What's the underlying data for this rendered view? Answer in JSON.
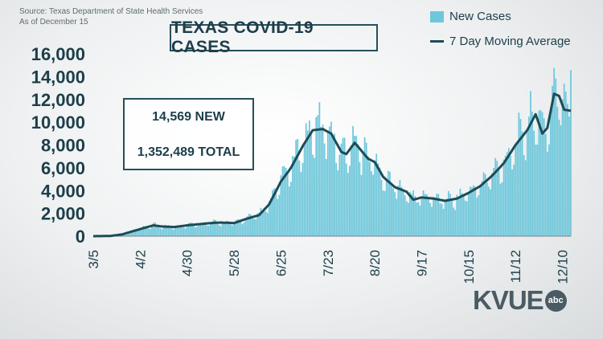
{
  "source_line1": "Source: Texas Department of State Health Services",
  "source_line2": "As of December 15",
  "stats": {
    "new": "14,569 NEW",
    "total": "1,352,489 TOTAL"
  },
  "logo": {
    "text": "KVUE",
    "badge": "abc"
  },
  "colors": {
    "bars": "#6ec7db",
    "line": "#1e4b57",
    "text": "#1d3e4a",
    "box_border": "#264f5c"
  },
  "chart_data": {
    "type": "bar",
    "title": "TEXAS COVID-19 CASES",
    "xlabel": "",
    "ylabel": "",
    "ylim": [
      0,
      16000
    ],
    "yticks": [
      0,
      2000,
      4000,
      6000,
      8000,
      10000,
      12000,
      14000,
      16000
    ],
    "ytick_labels": [
      "0",
      "2,000",
      "4,000",
      "6,000",
      "8,000",
      "10,000",
      "12,000",
      "14,000",
      "16,000"
    ],
    "x_start": "2020-03-05",
    "x_end": "2020-12-15",
    "xticks": [
      "2020-03-05",
      "2020-04-02",
      "2020-04-30",
      "2020-05-28",
      "2020-06-25",
      "2020-07-23",
      "2020-08-20",
      "2020-09-17",
      "2020-10-15",
      "2020-11-12",
      "2020-12-10"
    ],
    "xtick_labels": [
      "3/5",
      "4/2",
      "4/30",
      "5/28",
      "6/25",
      "7/23",
      "8/20",
      "9/17",
      "10/15",
      "11/12",
      "12/10"
    ],
    "legend": {
      "position": "top-right",
      "entries": [
        "New Cases",
        "7 Day Moving Average"
      ]
    },
    "series": [
      {
        "name": "7 Day Moving Average",
        "kind": "line",
        "points": [
          [
            "2020-03-05",
            0
          ],
          [
            "2020-03-15",
            20
          ],
          [
            "2020-03-22",
            150
          ],
          [
            "2020-03-29",
            450
          ],
          [
            "2020-04-05",
            750
          ],
          [
            "2020-04-10",
            950
          ],
          [
            "2020-04-15",
            850
          ],
          [
            "2020-04-22",
            800
          ],
          [
            "2020-04-30",
            950
          ],
          [
            "2020-05-07",
            1050
          ],
          [
            "2020-05-14",
            1150
          ],
          [
            "2020-05-20",
            1200
          ],
          [
            "2020-05-28",
            1150
          ],
          [
            "2020-06-05",
            1550
          ],
          [
            "2020-06-12",
            1850
          ],
          [
            "2020-06-18",
            2800
          ],
          [
            "2020-06-25",
            4800
          ],
          [
            "2020-07-01",
            6000
          ],
          [
            "2020-07-08",
            7900
          ],
          [
            "2020-07-14",
            9300
          ],
          [
            "2020-07-20",
            9400
          ],
          [
            "2020-07-25",
            9000
          ],
          [
            "2020-07-31",
            7400
          ],
          [
            "2020-08-03",
            7200
          ],
          [
            "2020-08-08",
            8200
          ],
          [
            "2020-08-12",
            7500
          ],
          [
            "2020-08-16",
            6800
          ],
          [
            "2020-08-20",
            6500
          ],
          [
            "2020-08-25",
            5200
          ],
          [
            "2020-09-01",
            4300
          ],
          [
            "2020-09-08",
            3900
          ],
          [
            "2020-09-12",
            3200
          ],
          [
            "2020-09-17",
            3400
          ],
          [
            "2020-09-24",
            3300
          ],
          [
            "2020-10-01",
            3100
          ],
          [
            "2020-10-08",
            3300
          ],
          [
            "2020-10-15",
            3800
          ],
          [
            "2020-10-22",
            4400
          ],
          [
            "2020-10-29",
            5300
          ],
          [
            "2020-11-05",
            6400
          ],
          [
            "2020-11-12",
            8000
          ],
          [
            "2020-11-19",
            9300
          ],
          [
            "2020-11-24",
            10700
          ],
          [
            "2020-11-28",
            9000
          ],
          [
            "2020-12-01",
            9500
          ],
          [
            "2020-12-05",
            12500
          ],
          [
            "2020-12-08",
            12300
          ],
          [
            "2020-12-11",
            11100
          ],
          [
            "2020-12-15",
            11000
          ]
        ]
      },
      {
        "name": "New Cases",
        "kind": "bar",
        "note": "daily bars approximated around the moving average"
      }
    ]
  }
}
